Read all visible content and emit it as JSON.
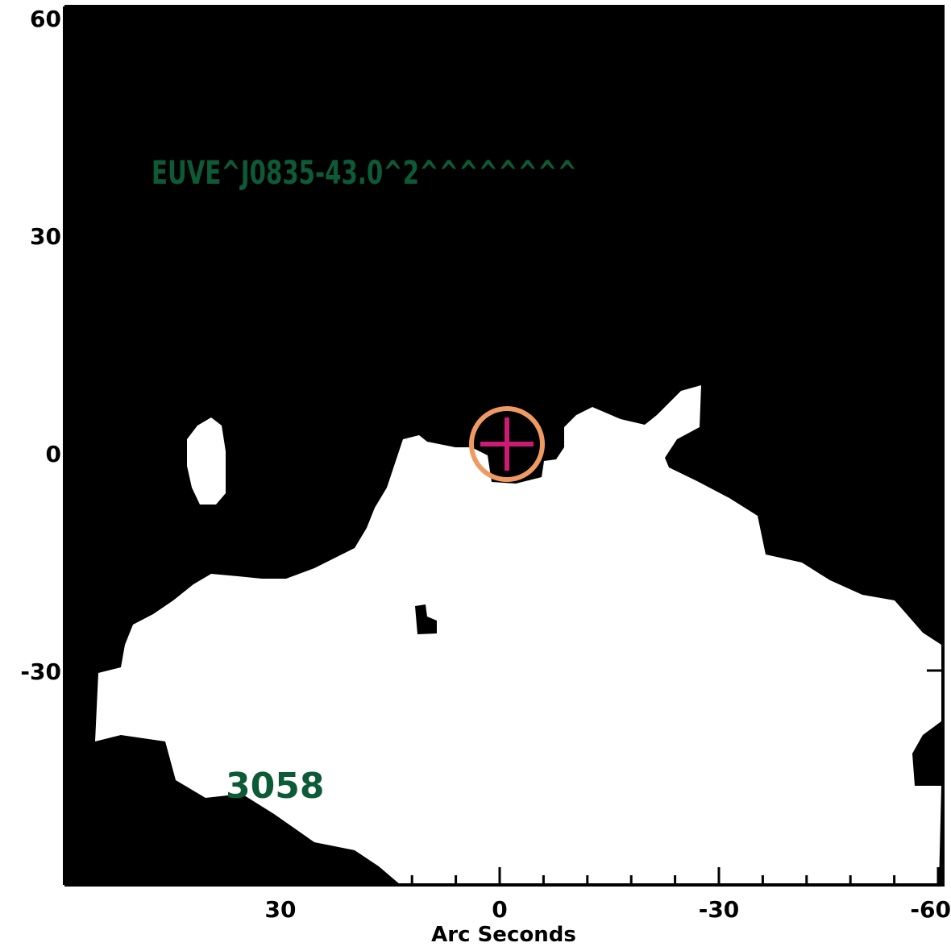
{
  "figure": {
    "source_label": "EUVE^J0835-43.0^2^^^^^^^^",
    "id_label": "3058",
    "xlabel": "Arc Seconds",
    "ylabel": "",
    "x_ticks": [
      "30",
      "0",
      "-30",
      "-60"
    ],
    "y_ticks": [
      "60",
      "30",
      "0",
      "-30"
    ],
    "colors": {
      "background": "#000000",
      "emission": "#ffffff",
      "label_green": "#0d5a36",
      "circle": "#f09a63",
      "cross": "#cc1a75",
      "axes": "#000000"
    },
    "marker": {
      "type": "circle-with-cross",
      "x_arcsec": -1,
      "y_arcsec": 1
    }
  }
}
